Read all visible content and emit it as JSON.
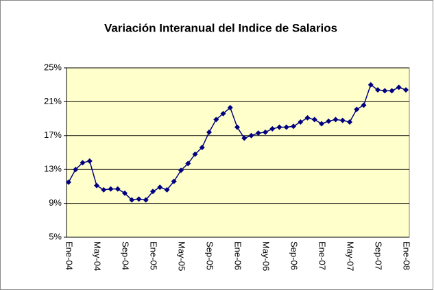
{
  "chart_data": {
    "type": "line",
    "title": "Variación Interanual del Indice de Salarios",
    "categories": [
      "Ene-04",
      null,
      null,
      null,
      "May-04",
      null,
      null,
      null,
      "Sep-04",
      null,
      null,
      null,
      "Ene-05",
      null,
      null,
      null,
      "May-05",
      null,
      null,
      null,
      "Sep-05",
      null,
      null,
      null,
      "Ene-06",
      null,
      null,
      null,
      "May-06",
      null,
      null,
      null,
      "Sep-06",
      null,
      null,
      null,
      "Ene-07",
      null,
      null,
      null,
      "May-07",
      null,
      null,
      null,
      "Sep-07",
      null,
      null,
      null,
      "Ene-08"
    ],
    "series": [
      {
        "name": "Variación Interanual",
        "color": "#000080",
        "values": [
          11.5,
          13.0,
          13.8,
          14.0,
          11.1,
          10.6,
          10.7,
          10.7,
          10.2,
          9.4,
          9.5,
          9.4,
          10.4,
          10.9,
          10.6,
          11.6,
          12.9,
          13.7,
          14.8,
          15.6,
          17.4,
          18.9,
          19.6,
          20.3,
          18.0,
          16.7,
          17.0,
          17.3,
          17.4,
          17.8,
          18.0,
          18.0,
          18.1,
          18.6,
          19.1,
          18.9,
          18.4,
          18.7,
          18.9,
          18.8,
          18.6,
          20.1,
          20.6,
          23.0,
          22.4,
          22.3,
          22.3,
          22.7,
          22.4
        ]
      }
    ],
    "ylim": [
      5,
      25
    ],
    "yticks": [
      {
        "value": 5,
        "label": "5%"
      },
      {
        "value": 9,
        "label": "9%"
      },
      {
        "value": 13,
        "label": "13%"
      },
      {
        "value": 17,
        "label": "17%"
      },
      {
        "value": 21,
        "label": "21%"
      },
      {
        "value": 25,
        "label": "25%"
      }
    ],
    "grid": true,
    "plot_background": "#ffffcc"
  }
}
